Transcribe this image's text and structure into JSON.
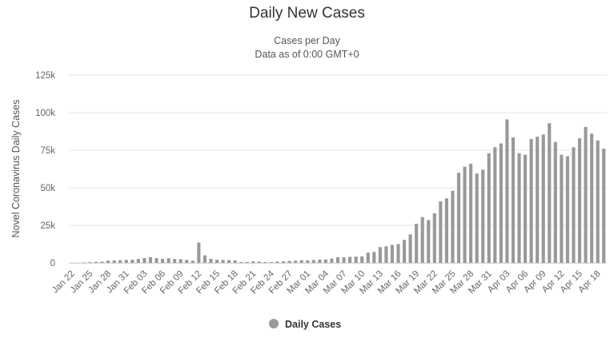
{
  "chart_data": {
    "type": "bar",
    "title": "Daily New Cases",
    "subtitle": [
      "Cases per Day",
      "Data as of 0:00 GMT+0"
    ],
    "ylabel": "Novel Coronavirus Daily Cases",
    "xlabel": "",
    "ylim": [
      0,
      125000
    ],
    "yticks": [
      "0",
      "25k",
      "50k",
      "75k",
      "100k",
      "125k"
    ],
    "ytick_values": [
      0,
      25000,
      50000,
      75000,
      100000,
      125000
    ],
    "grid": "horizontal",
    "legend": {
      "position": "bottom-center",
      "entries": [
        "Daily Cases"
      ]
    },
    "series_color": "#999999",
    "categories": [
      "Jan 22",
      "Jan 23",
      "Jan 24",
      "Jan 25",
      "Jan 26",
      "Jan 27",
      "Jan 28",
      "Jan 29",
      "Jan 30",
      "Jan 31",
      "Feb 01",
      "Feb 02",
      "Feb 03",
      "Feb 04",
      "Feb 05",
      "Feb 06",
      "Feb 07",
      "Feb 08",
      "Feb 09",
      "Feb 10",
      "Feb 11",
      "Feb 12",
      "Feb 13",
      "Feb 14",
      "Feb 15",
      "Feb 16",
      "Feb 17",
      "Feb 18",
      "Feb 19",
      "Feb 20",
      "Feb 21",
      "Feb 22",
      "Feb 23",
      "Feb 24",
      "Feb 25",
      "Feb 26",
      "Feb 27",
      "Feb 28",
      "Feb 29",
      "Mar 01",
      "Mar 02",
      "Mar 03",
      "Mar 04",
      "Mar 05",
      "Mar 06",
      "Mar 07",
      "Mar 08",
      "Mar 09",
      "Mar 10",
      "Mar 11",
      "Mar 12",
      "Mar 13",
      "Mar 14",
      "Mar 15",
      "Mar 16",
      "Mar 17",
      "Mar 18",
      "Mar 19",
      "Mar 20",
      "Mar 21",
      "Mar 22",
      "Mar 23",
      "Mar 24",
      "Mar 25",
      "Mar 26",
      "Mar 27",
      "Mar 28",
      "Mar 29",
      "Mar 30",
      "Mar 31",
      "Apr 01",
      "Apr 02",
      "Apr 03",
      "Apr 04",
      "Apr 05",
      "Apr 06",
      "Apr 07",
      "Apr 08",
      "Apr 09",
      "Apr 10",
      "Apr 11",
      "Apr 12",
      "Apr 13",
      "Apr 14",
      "Apr 15",
      "Apr 16",
      "Apr 17",
      "Apr 18",
      "Apr 19"
    ],
    "xtick_labels": [
      "Jan 22",
      "Jan 25",
      "Jan 28",
      "Jan 31",
      "Feb 03",
      "Feb 06",
      "Feb 09",
      "Feb 12",
      "Feb 15",
      "Feb 18",
      "Feb 21",
      "Feb 24",
      "Feb 27",
      "Mar 01",
      "Mar 04",
      "Mar 07",
      "Mar 10",
      "Mar 13",
      "Mar 16",
      "Mar 19",
      "Mar 22",
      "Mar 25",
      "Mar 28",
      "Mar 31",
      "Apr 03",
      "Apr 06",
      "Apr 09",
      "Apr 12",
      "Apr 15",
      "Apr 18"
    ],
    "series": [
      {
        "name": "Daily Cases",
        "values": [
          0,
          100,
          300,
          500,
          700,
          800,
          1500,
          1700,
          1800,
          2000,
          2100,
          2600,
          3200,
          3800,
          3200,
          2700,
          3100,
          2600,
          2500,
          2000,
          1500,
          13500,
          5000,
          2700,
          2100,
          2000,
          1900,
          1700,
          600,
          600,
          1000,
          800,
          600,
          500,
          900,
          1000,
          1300,
          1500,
          1800,
          1700,
          1900,
          2200,
          2300,
          2800,
          3800,
          3700,
          4000,
          4200,
          4300,
          6800,
          7300,
          10500,
          11000,
          12000,
          12500,
          15300,
          19000,
          26000,
          30500,
          28500,
          33000,
          41000,
          43000,
          48000,
          60000,
          64000,
          66000,
          59500,
          62000,
          73000,
          77000,
          79500,
          95500,
          83500,
          73000,
          72000,
          82500,
          84000,
          85500,
          93000,
          80500,
          72000,
          71000,
          77000,
          83000,
          90500,
          86000,
          81500,
          76000
        ]
      }
    ]
  }
}
